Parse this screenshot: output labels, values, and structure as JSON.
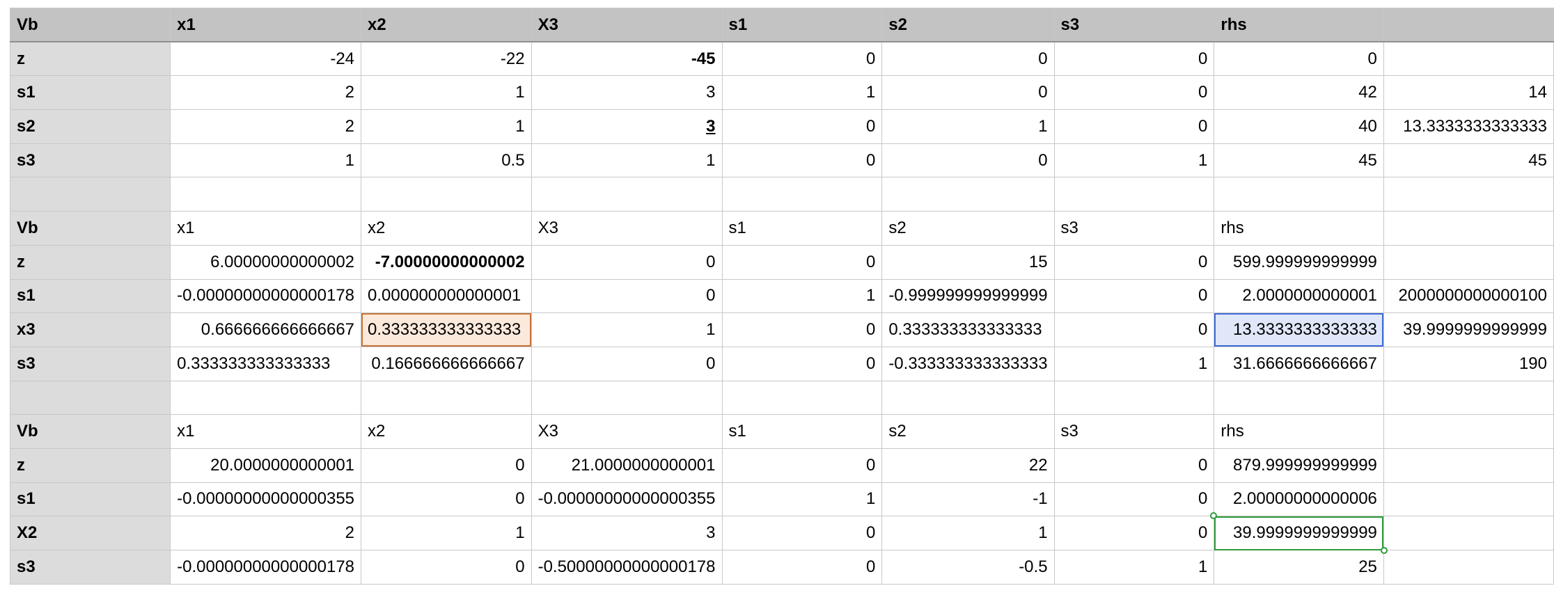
{
  "header": [
    "Vb",
    "x1",
    "x2",
    "X3",
    "s1",
    "s2",
    "s3",
    "rhs",
    ""
  ],
  "table1": [
    [
      "z",
      "-24",
      "-22",
      "-45",
      "0",
      "0",
      "0",
      "0",
      ""
    ],
    [
      "s1",
      "2",
      "1",
      "3",
      "1",
      "0",
      "0",
      "42",
      "14"
    ],
    [
      "s2",
      "2",
      "1",
      "3",
      "0",
      "1",
      "0",
      "40",
      "13.3333333333333"
    ],
    [
      "s3",
      "1",
      "0.5",
      "1",
      "0",
      "0",
      "1",
      "45",
      "45"
    ]
  ],
  "table2_header": [
    "Vb",
    "x1",
    "x2",
    "X3",
    "s1",
    "s2",
    "s3",
    "rhs",
    ""
  ],
  "table2": [
    [
      "z",
      "6.00000000000002",
      "-7.00000000000002",
      "0",
      "0",
      "15",
      "0",
      "599.999999999999",
      ""
    ],
    [
      "s1",
      "-0.00000000000000178",
      "0.000000000000001",
      "0",
      "1",
      "-0.999999999999999",
      "0",
      "2.0000000000001",
      "2000000000000100"
    ],
    [
      "x3",
      "0.666666666666667",
      "0.333333333333333",
      "1",
      "0",
      "0.333333333333333",
      "0",
      "13.3333333333333",
      "39.9999999999999"
    ],
    [
      "s3",
      "0.333333333333333",
      "0.166666666666667",
      "0",
      "0",
      "-0.333333333333333",
      "1",
      "31.6666666666667",
      "190"
    ]
  ],
  "table3_header": [
    "Vb",
    "x1",
    "x2",
    "X3",
    "s1",
    "s2",
    "s3",
    "rhs",
    ""
  ],
  "table3": [
    [
      "z",
      "20.0000000000001",
      "0",
      "21.0000000000001",
      "0",
      "22",
      "0",
      "879.999999999999",
      ""
    ],
    [
      "s1",
      "-0.00000000000000355",
      "0",
      "-0.00000000000000355",
      "1",
      "-1",
      "0",
      "2.00000000000006",
      ""
    ],
    [
      "X2",
      "2",
      "1",
      "3",
      "0",
      "1",
      "0",
      "39.9999999999999",
      ""
    ],
    [
      "s3",
      "-0.00000000000000178",
      "0",
      "-0.50000000000000178",
      "0",
      "-0.5",
      "1",
      "25",
      ""
    ]
  ]
}
